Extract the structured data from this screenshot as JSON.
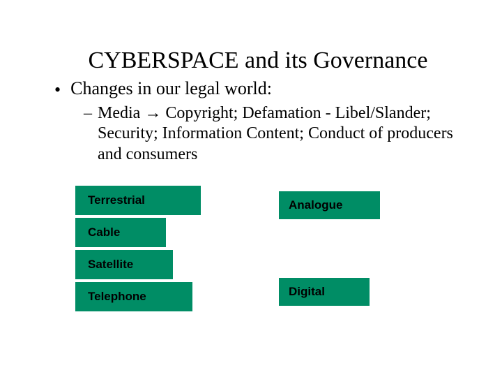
{
  "title": "CYBERSPACE and its Governance",
  "bullet1": "Changes in our legal world:",
  "bullet2": "Media → Copyright; Defamation - Libel/Slander; Security; Information Content; Conduct of producers and consumers",
  "boxes": {
    "terrestrial": {
      "label": "Terrestrial",
      "bg": "#008d65"
    },
    "cable": {
      "label": "Cable",
      "bg": "#008d65"
    },
    "satellite": {
      "label": "Satellite",
      "bg": "#008d65"
    },
    "telephone": {
      "label": "Telephone",
      "bg": "#008d65"
    },
    "analogue": {
      "label": "Analogue",
      "bg": "#008d65"
    },
    "digital": {
      "label": "Digital",
      "bg": "#008d65"
    }
  },
  "styling": {
    "background_color": "#ffffff",
    "title_fontsize": 34,
    "bullet1_fontsize": 26,
    "bullet2_fontsize": 24,
    "box_fontsize": 17,
    "box_font": "Verdana",
    "title_font": "Times New Roman",
    "text_color": "#000000"
  }
}
